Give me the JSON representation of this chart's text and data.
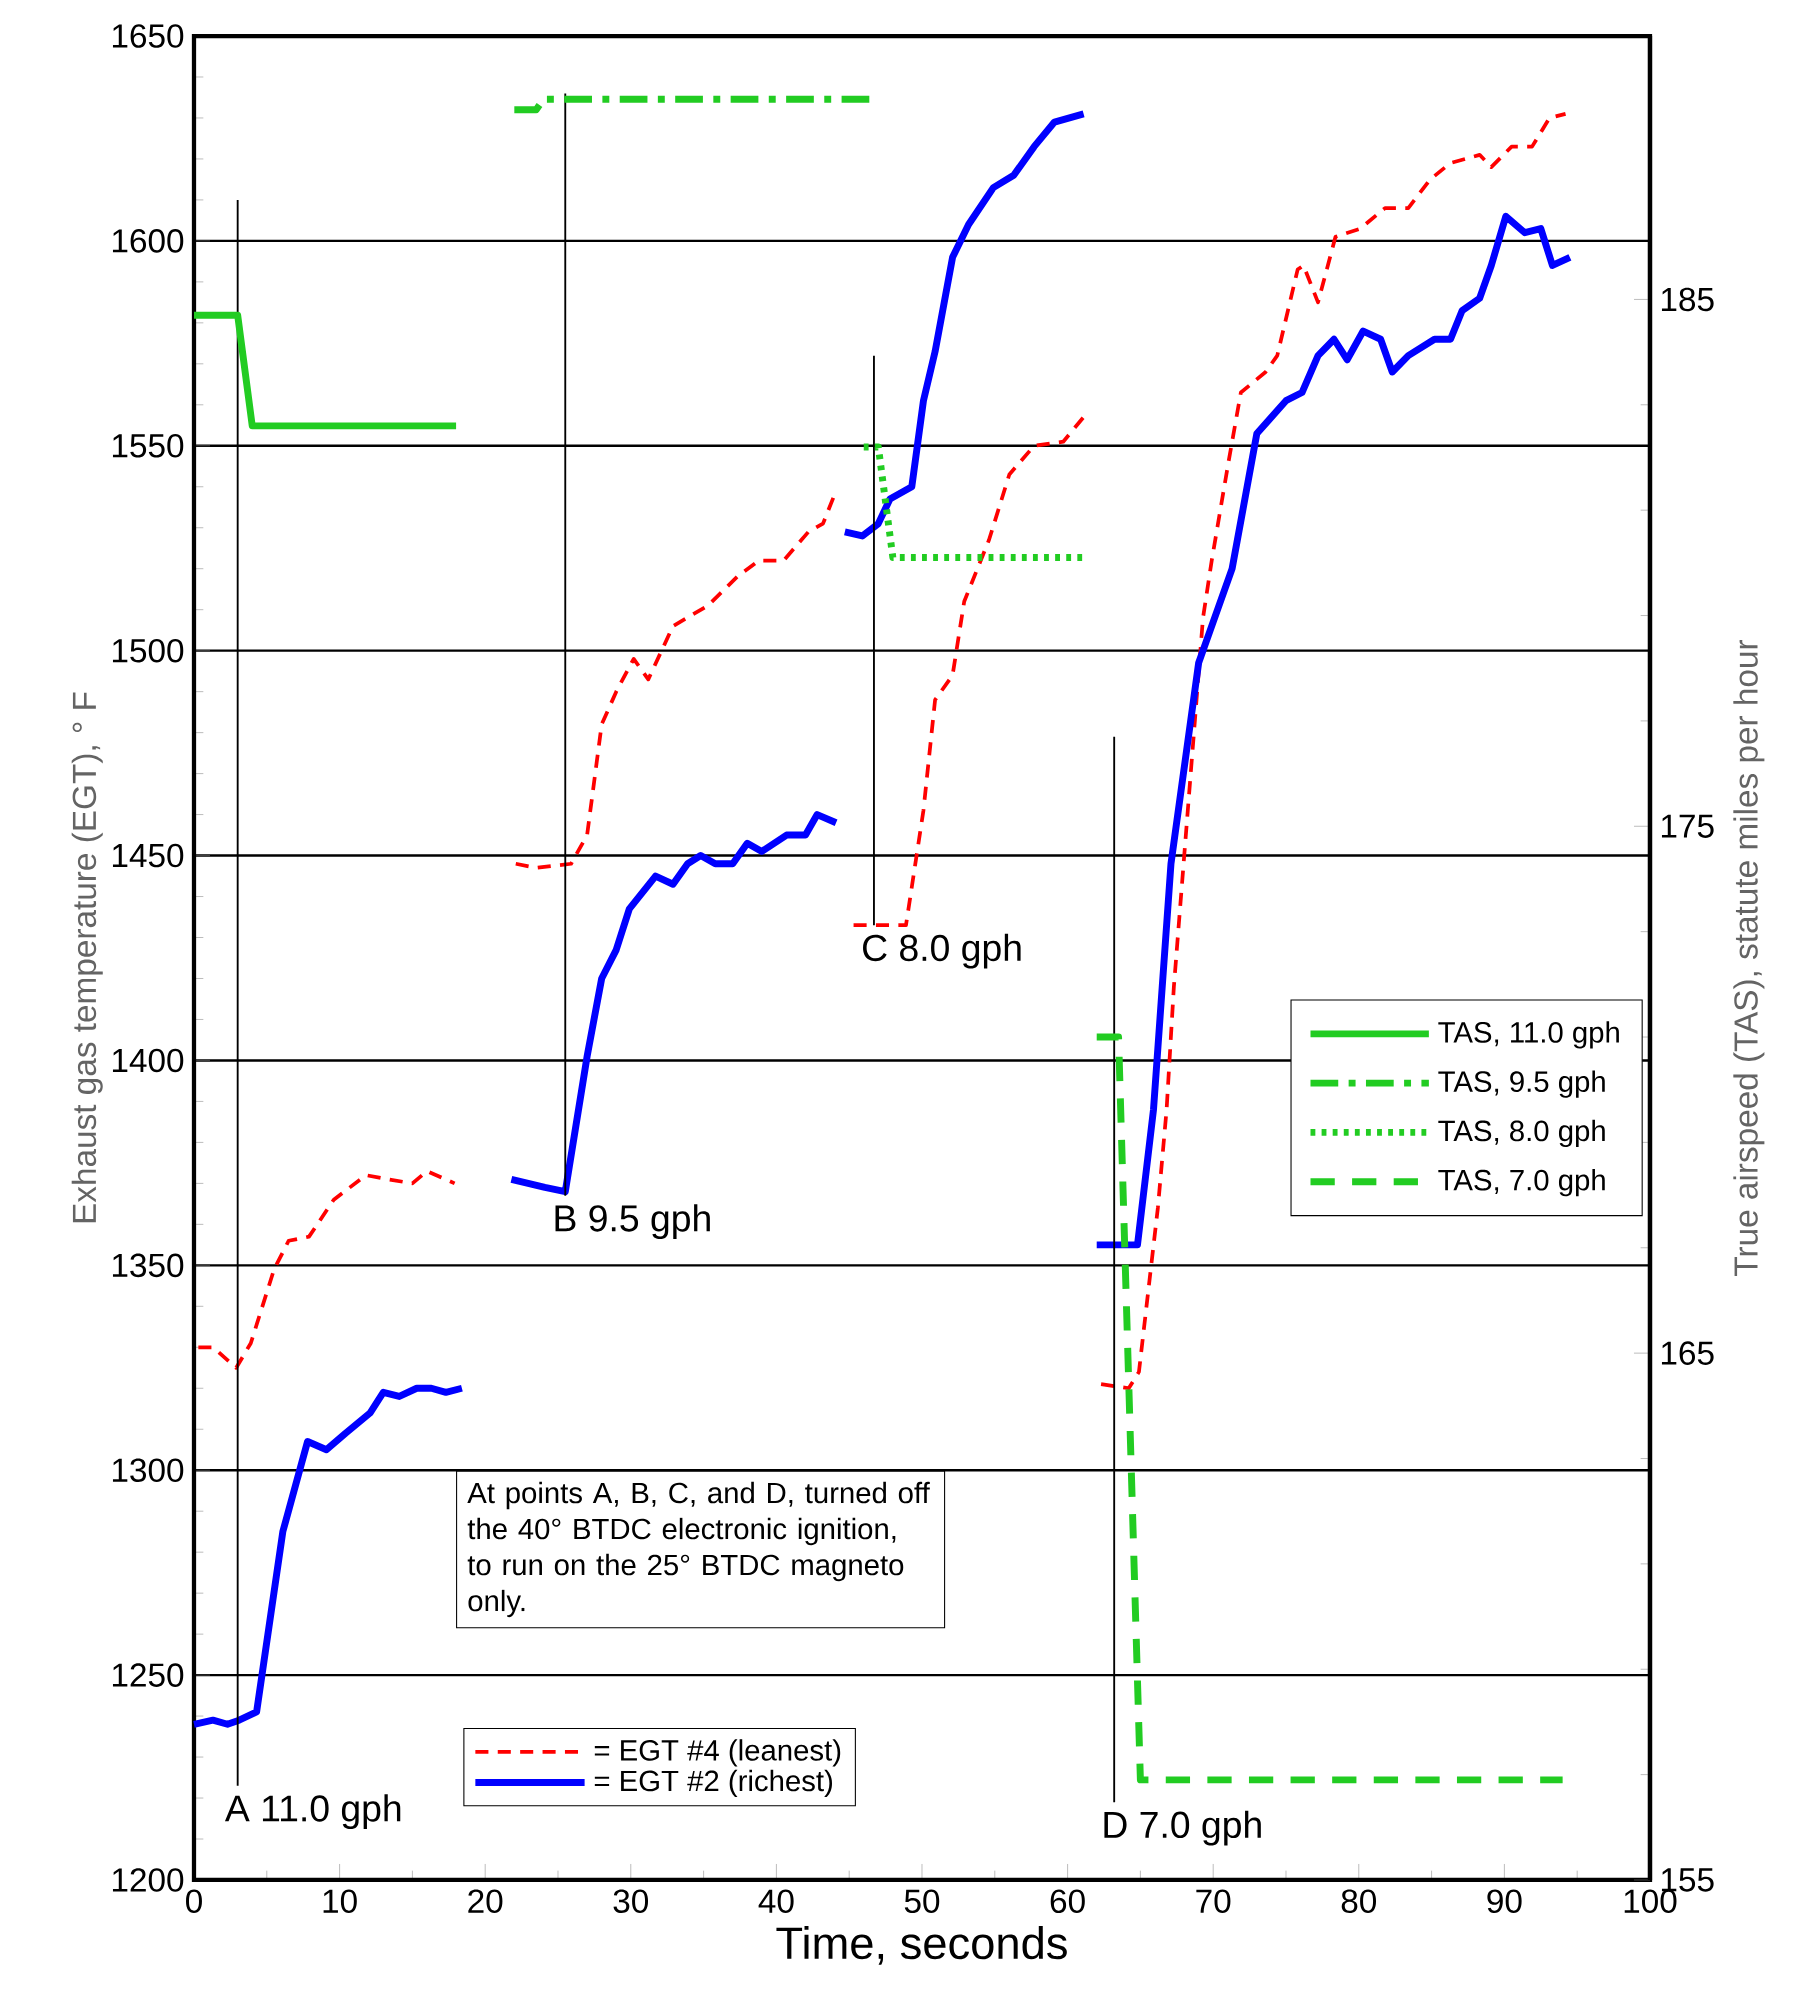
{
  "chart_data": {
    "type": "line",
    "xlabel": "Time, seconds",
    "ylabel": "Exhaust gas temperature (EGT), ° F",
    "y2label": "True airspeed (TAS), statute miles per hour",
    "xlim": [
      0,
      100
    ],
    "xticks": [
      0,
      10,
      20,
      30,
      40,
      50,
      60,
      70,
      80,
      90,
      100
    ],
    "ylim": [
      1200,
      1650
    ],
    "yticks": [
      1200,
      1250,
      1300,
      1350,
      1400,
      1450,
      1500,
      1550,
      1600,
      1650
    ],
    "y2lim": [
      155,
      190
    ],
    "y2ticks": [
      155,
      165,
      175,
      185
    ],
    "grid": "y",
    "legend": "right",
    "series": [
      {
        "name": "= EGT #4 (leanest)",
        "color": "#ff0000",
        "line_style": "dashed",
        "x": [
          0.3,
          1.3,
          2.9,
          3.9,
          5.5,
          6.5,
          7.9,
          9.6,
          11.8,
          13.3,
          15,
          16,
          17.9,
          null,
          22.1,
          23.5,
          25.9,
          27,
          28,
          29,
          30.2,
          31.2,
          32.9,
          35.3,
          37.3,
          38.8,
          40.5,
          42.2,
          43.2,
          44.1,
          null,
          45.3,
          48.9,
          50.1,
          50.9,
          52.1,
          52.9,
          54.6,
          56,
          57.7,
          59.7,
          61.1,
          null,
          62.3,
          64.2,
          64.9,
          66.2,
          66.8,
          67.3,
          68.5,
          69.3,
          69.9,
          71,
          71.9,
          73.6,
          74.4,
          75.8,
          76.2,
          77.2,
          78.4,
          80.1,
          81.8,
          83.4,
          84.9,
          86.3,
          88.3,
          89.1,
          90.5,
          91.9,
          93.1,
          94.2
        ],
        "values": [
          1330,
          1330,
          1325,
          1331,
          1349,
          1356,
          1357,
          1366,
          1372,
          1371,
          1370,
          1373,
          1370,
          null,
          1448,
          1447,
          1448,
          1455,
          1482,
          1490,
          1498,
          1493,
          1506,
          1511,
          1518,
          1522,
          1522,
          1529,
          1531,
          1539,
          null,
          1433,
          1433,
          1461,
          1488,
          1494,
          1512,
          1527,
          1543,
          1550,
          1551,
          1557,
          null,
          1321,
          1320,
          1324,
          1364,
          1388,
          1418,
          1472,
          1508,
          1522,
          1545,
          1563,
          1568,
          1572,
          1593,
          1594,
          1585,
          1601,
          1603,
          1608,
          1608,
          1615,
          1619,
          1621,
          1618,
          1623,
          1623,
          1630,
          1631
        ]
      },
      {
        "name": "=  EGT #2 (richest)",
        "color": "#0000ff",
        "line_style": "solid",
        "x": [
          0,
          1.3,
          2.3,
          3.1,
          4.3,
          6.1,
          7.8,
          9.1,
          10.4,
          12.1,
          13,
          14.1,
          15.3,
          16.3,
          17.3,
          18.4,
          null,
          21.8,
          24.1,
          25.5,
          27,
          28,
          29,
          29.9,
          31.7,
          32.9,
          33.9,
          34.8,
          35.8,
          37,
          38,
          39,
          40.7,
          42,
          42.8,
          44.1,
          null,
          44.7,
          45.9,
          47,
          47.8,
          49.3,
          50.1,
          50.9,
          52.1,
          53.2,
          54.9,
          56.3,
          57.7,
          59.1,
          61.1,
          null,
          62,
          64.8,
          65.9,
          67.1,
          69,
          71.3,
          73,
          75,
          76.1,
          77.2,
          78.3,
          79.2,
          80.3,
          81.5,
          82.3,
          83.4,
          85.2,
          86.3,
          87.1,
          88.3,
          89.1,
          90.1,
          91.4,
          92.5,
          93.3,
          94.5
        ],
        "values": [
          1238,
          1239,
          1238,
          1239,
          1241,
          1285,
          1307,
          1305,
          1309,
          1314,
          1319,
          1318,
          1320,
          1320,
          1319,
          1320,
          null,
          1371,
          1369,
          1368,
          1401,
          1420,
          1427,
          1437,
          1445,
          1443,
          1448,
          1450,
          1448,
          1448,
          1453,
          1451,
          1455,
          1455,
          1460,
          1458,
          null,
          1529,
          1528,
          1531,
          1537,
          1540,
          1561,
          1573,
          1596,
          1604,
          1613,
          1616,
          1623,
          1629,
          1631,
          null,
          1355,
          1355,
          1388,
          1448,
          1497,
          1520,
          1553,
          1561,
          1563,
          1572,
          1576,
          1571,
          1578,
          1576,
          1568,
          1572,
          1576,
          1576,
          1583,
          1586,
          1594,
          1606,
          1602,
          1603,
          1594,
          1596
        ]
      },
      {
        "color": "#000000",
        "x": [
          3,
          3
        ],
        "values": [
          1223,
          1610
        ]
      },
      {
        "color": "#000000",
        "x": [
          25.5,
          25.5
        ],
        "values": [
          1367,
          1636
        ]
      },
      {
        "color": "#000000",
        "x": [
          46.7,
          46.7
        ],
        "values": [
          1433,
          1572
        ]
      },
      {
        "color": "#000000",
        "x": [
          63.2,
          63.2
        ],
        "values": [
          1219,
          1479
        ]
      },
      {
        "name": "TAS, 11.0 gph",
        "color": "#22cc22",
        "axis": "y2",
        "line_style": "solid",
        "x": [
          0,
          3,
          4,
          18
        ],
        "values": [
          184.7,
          184.7,
          182.6,
          182.6
        ]
      },
      {
        "name": "TAS, 9.5 gph",
        "color": "#22cc22",
        "axis": "y2",
        "line_style": "dashdot",
        "x": [
          22,
          23.5,
          24,
          47
        ],
        "values": [
          188.6,
          188.6,
          188.8,
          188.8
        ]
      },
      {
        "name": "TAS, 8.0 gph",
        "color": "#22cc22",
        "axis": "y2",
        "line_style": "dotted",
        "x": [
          46,
          47,
          48,
          61
        ],
        "values": [
          182.2,
          182.2,
          180.1,
          180.1
        ]
      },
      {
        "name": "TAS, 7.0 gph",
        "color": "#22cc22",
        "axis": "y2",
        "line_style": "dashed",
        "x": [
          62,
          63.5,
          65,
          94
        ],
        "values": [
          171,
          171,
          156.9,
          156.9
        ]
      }
    ],
    "annotations": [
      {
        "text": "A 11.0 gph",
        "x": 3,
        "y": 1223
      },
      {
        "text": "B 9.5 gph",
        "x": 25.5,
        "y": 1367
      },
      {
        "text": "C 8.0 gph",
        "x": 46.7,
        "y": 1433
      },
      {
        "text": "D 7.0 gph",
        "x": 63.2,
        "y": 1219
      },
      "At points A, B, C, and D, turned off the 40° BTDC electronic ignition, to run on the 25° BTDC magneto only."
    ]
  }
}
